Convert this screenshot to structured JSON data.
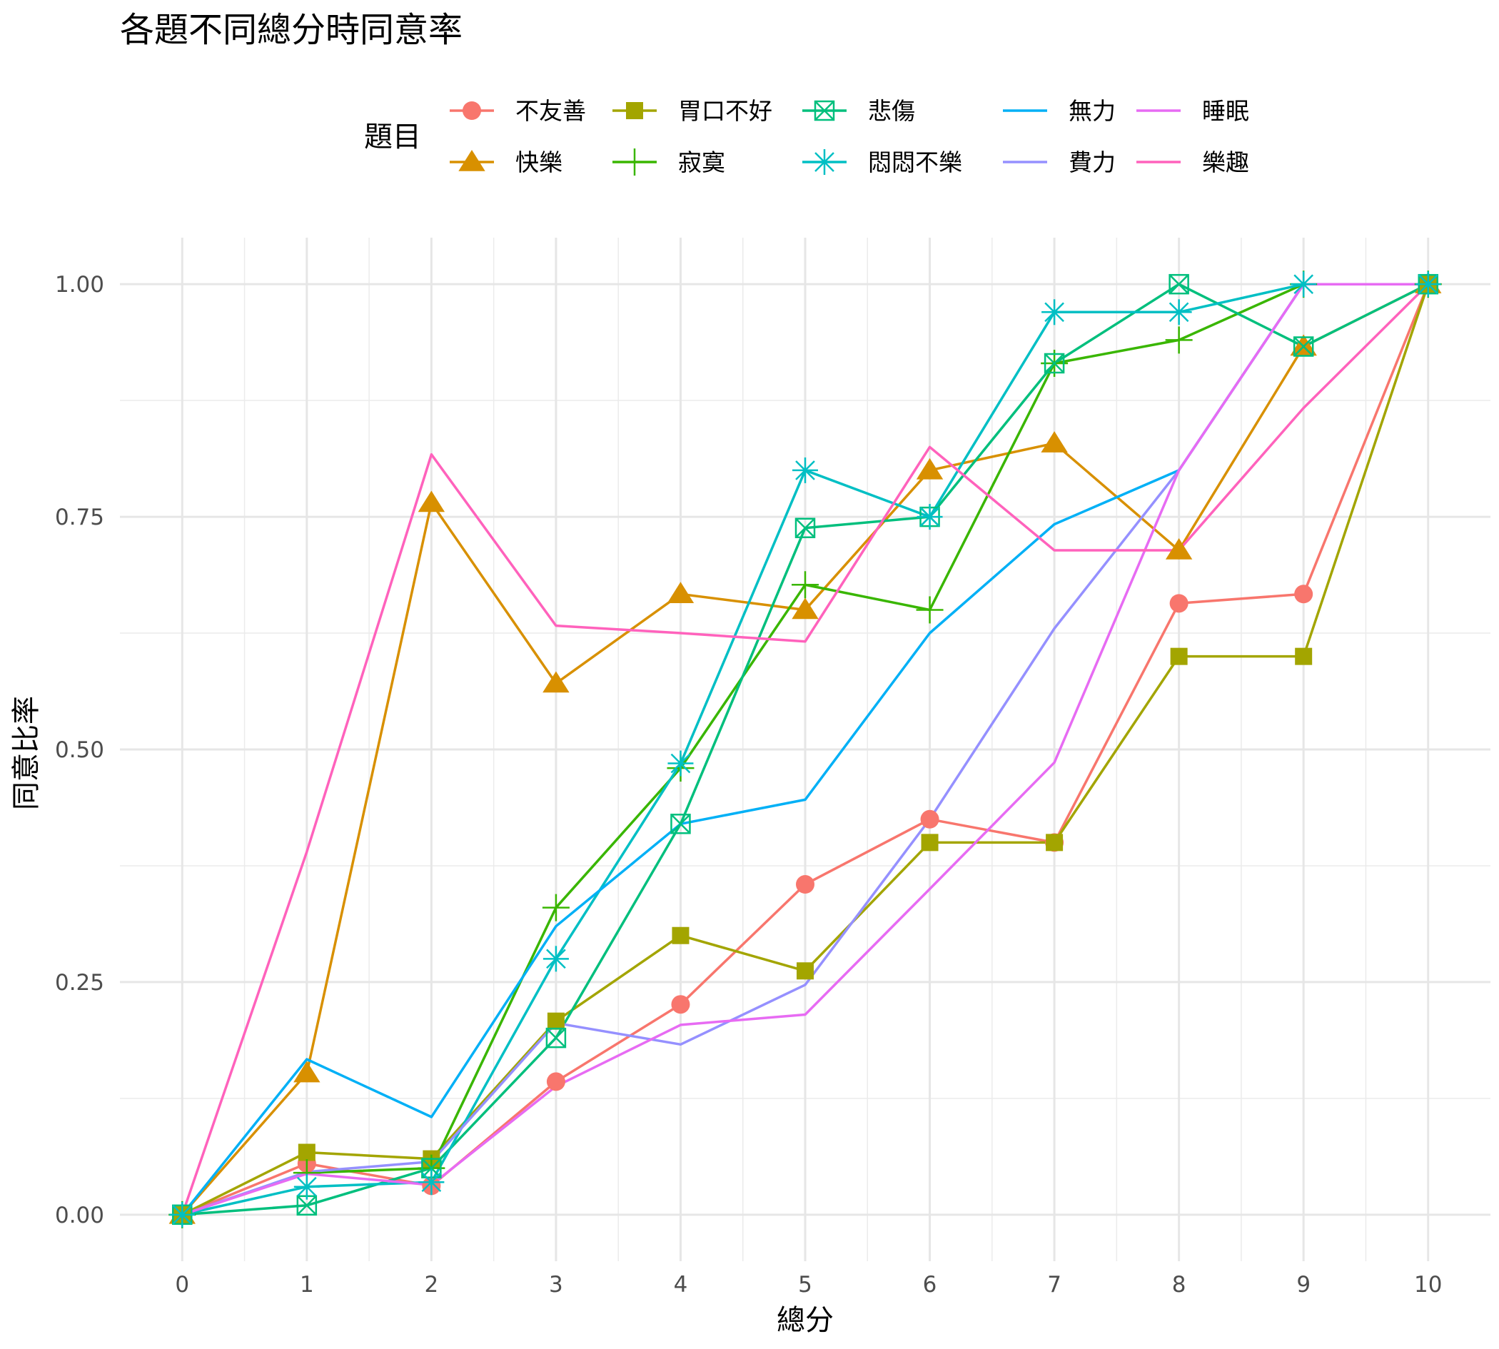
{
  "chart_data": {
    "type": "line",
    "title": "各題不同總分時同意率",
    "xlabel": "總分",
    "ylabel": "同意比率",
    "x": [
      0,
      1,
      2,
      3,
      4,
      5,
      6,
      7,
      8,
      9,
      10
    ],
    "xlim": [
      -0.5,
      10.5
    ],
    "ylim": [
      -0.05,
      1.05
    ],
    "x_ticks": [
      "0",
      "1",
      "2",
      "3",
      "4",
      "5",
      "6",
      "7",
      "8",
      "9",
      "10"
    ],
    "y_ticks": [
      "0.00",
      "0.25",
      "0.50",
      "0.75",
      "1.00"
    ],
    "grid": true,
    "legend_title": "題目",
    "legend_position": "top",
    "series": [
      {
        "name": "不友善",
        "color": "#F8766D",
        "marker": "circle",
        "values": [
          0,
          0.055,
          0.031,
          0.143,
          0.226,
          0.355,
          0.425,
          0.4,
          0.657,
          0.667,
          1.0
        ]
      },
      {
        "name": "快樂",
        "color": "#D89000",
        "marker": "triangle",
        "values": [
          0,
          0.152,
          0.765,
          0.571,
          0.667,
          0.65,
          0.8,
          0.829,
          0.714,
          0.933,
          1.0
        ]
      },
      {
        "name": "胃口不好",
        "color": "#A3A500",
        "marker": "square",
        "values": [
          0,
          0.067,
          0.06,
          0.208,
          0.3,
          0.262,
          0.4,
          0.4,
          0.6,
          0.6,
          1.0
        ]
      },
      {
        "name": "寂寞",
        "color": "#39B600",
        "marker": "plus",
        "values": [
          0,
          0.045,
          0.05,
          0.33,
          0.48,
          0.677,
          0.65,
          0.915,
          0.94,
          1.0,
          1.0
        ]
      },
      {
        "name": "悲傷",
        "color": "#00BF7D",
        "marker": "square-x",
        "values": [
          0,
          0.01,
          0.05,
          0.19,
          0.42,
          0.738,
          0.75,
          0.915,
          1.0,
          0.933,
          1.0
        ]
      },
      {
        "name": "悶悶不樂",
        "color": "#00BFC4",
        "marker": "asterisk",
        "values": [
          0,
          0.03,
          0.035,
          0.275,
          0.485,
          0.8,
          0.75,
          0.97,
          0.97,
          1.0,
          1.0
        ]
      },
      {
        "name": "無力",
        "color": "#00B0F6",
        "marker": "none",
        "values": [
          0,
          0.167,
          0.105,
          0.31,
          0.42,
          0.446,
          0.625,
          0.742,
          0.8,
          1.0,
          1.0
        ]
      },
      {
        "name": "費力",
        "color": "#9590FF",
        "marker": "none",
        "values": [
          0,
          0.046,
          0.057,
          0.206,
          0.183,
          0.247,
          0.425,
          0.63,
          0.8,
          1.0,
          1.0
        ]
      },
      {
        "name": "睡眠",
        "color": "#E76BF3",
        "marker": "none",
        "values": [
          0,
          0.044,
          0.032,
          0.138,
          0.204,
          0.215,
          0.35,
          0.486,
          0.8,
          1.0,
          1.0
        ]
      },
      {
        "name": "樂趣",
        "color": "#FF62BC",
        "marker": "none",
        "values": [
          0,
          0.39,
          0.817,
          0.633,
          0.625,
          0.616,
          0.825,
          0.714,
          0.714,
          0.867,
          1.0
        ]
      }
    ]
  }
}
